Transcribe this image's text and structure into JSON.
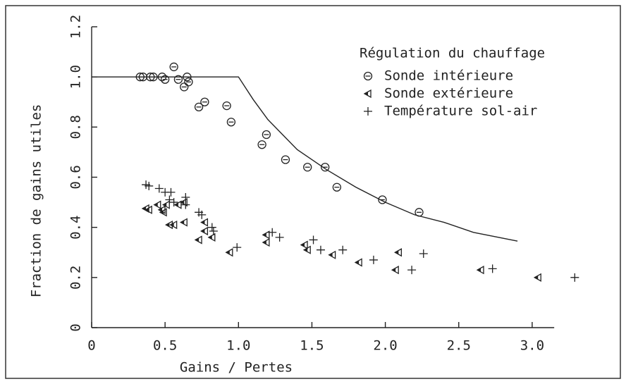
{
  "chart_data": {
    "type": "scatter",
    "xlabel": "Gains / Pertes",
    "ylabel": "Fraction de gains utiles",
    "legend_title": "Régulation du chauffage",
    "legend": "upper right",
    "xlim": [
      0,
      3.3
    ],
    "ylim": [
      0,
      1.2
    ],
    "xticks": [
      0,
      0.5,
      {
        "value": 1,
        "label": "1.0"
      },
      1.5,
      {
        "value": 2,
        "label": "2.0"
      },
      2.5,
      {
        "value": 3,
        "label": "3.0"
      }
    ],
    "yticks": [
      0,
      0.2,
      0.4,
      0.6,
      0.8,
      {
        "value": 1,
        "label": "1.0"
      },
      1.2
    ],
    "series": [
      {
        "name": "Sonde intérieure",
        "marker": "circle",
        "color": "#222",
        "x": [
          0.33,
          0.35,
          0.4,
          0.42,
          0.48,
          0.5,
          0.56,
          0.59,
          0.63,
          0.65,
          0.66,
          0.73,
          0.77,
          0.92,
          0.95,
          1.16,
          1.19,
          1.32,
          1.47,
          1.59,
          1.67,
          1.98,
          2.23
        ],
        "values": [
          1.0,
          1.0,
          1.0,
          1.0,
          1.0,
          0.99,
          1.04,
          0.99,
          0.96,
          1.0,
          0.98,
          0.88,
          0.9,
          0.885,
          0.82,
          0.73,
          0.77,
          0.67,
          0.64,
          0.64,
          0.56,
          0.51,
          0.46
        ]
      },
      {
        "name": "Sonde extérieure",
        "marker": "triangle",
        "color": "#222",
        "x": [
          0.37,
          0.39,
          0.45,
          0.48,
          0.49,
          0.51,
          0.53,
          0.56,
          0.59,
          0.63,
          0.63,
          0.73,
          0.77,
          0.77,
          0.82,
          0.94,
          1.19,
          1.19,
          1.45,
          1.47,
          1.64,
          1.82,
          2.09,
          2.07,
          2.65,
          3.04
        ],
        "values": [
          0.475,
          0.47,
          0.49,
          0.47,
          0.46,
          0.49,
          0.41,
          0.41,
          0.49,
          0.42,
          0.5,
          0.35,
          0.385,
          0.42,
          0.36,
          0.3,
          0.37,
          0.34,
          0.33,
          0.31,
          0.29,
          0.26,
          0.3,
          0.23,
          0.23,
          0.2
        ]
      },
      {
        "name": "Température sol-air",
        "marker": "plus",
        "color": "#222",
        "x": [
          0.37,
          0.39,
          0.46,
          0.5,
          0.54,
          0.53,
          0.56,
          0.64,
          0.64,
          0.73,
          0.75,
          0.82,
          0.83,
          0.99,
          1.23,
          1.28,
          1.51,
          1.56,
          1.71,
          1.92,
          2.18,
          2.26,
          2.73,
          3.29
        ],
        "values": [
          0.57,
          0.565,
          0.555,
          0.54,
          0.54,
          0.51,
          0.5,
          0.52,
          0.49,
          0.46,
          0.45,
          0.4,
          0.385,
          0.32,
          0.38,
          0.36,
          0.35,
          0.31,
          0.31,
          0.27,
          0.23,
          0.295,
          0.235,
          0.2
        ]
      }
    ],
    "curve": {
      "color": "#222",
      "x": [
        0,
        1,
        1.1,
        1.2,
        1.3,
        1.4,
        1.5,
        1.6,
        1.8,
        2.0,
        2.2,
        2.4,
        2.6,
        2.9
      ],
      "values": [
        1,
        1,
        0.91,
        0.83,
        0.77,
        0.71,
        0.67,
        0.63,
        0.56,
        0.5,
        0.45,
        0.42,
        0.38,
        0.345
      ]
    }
  }
}
